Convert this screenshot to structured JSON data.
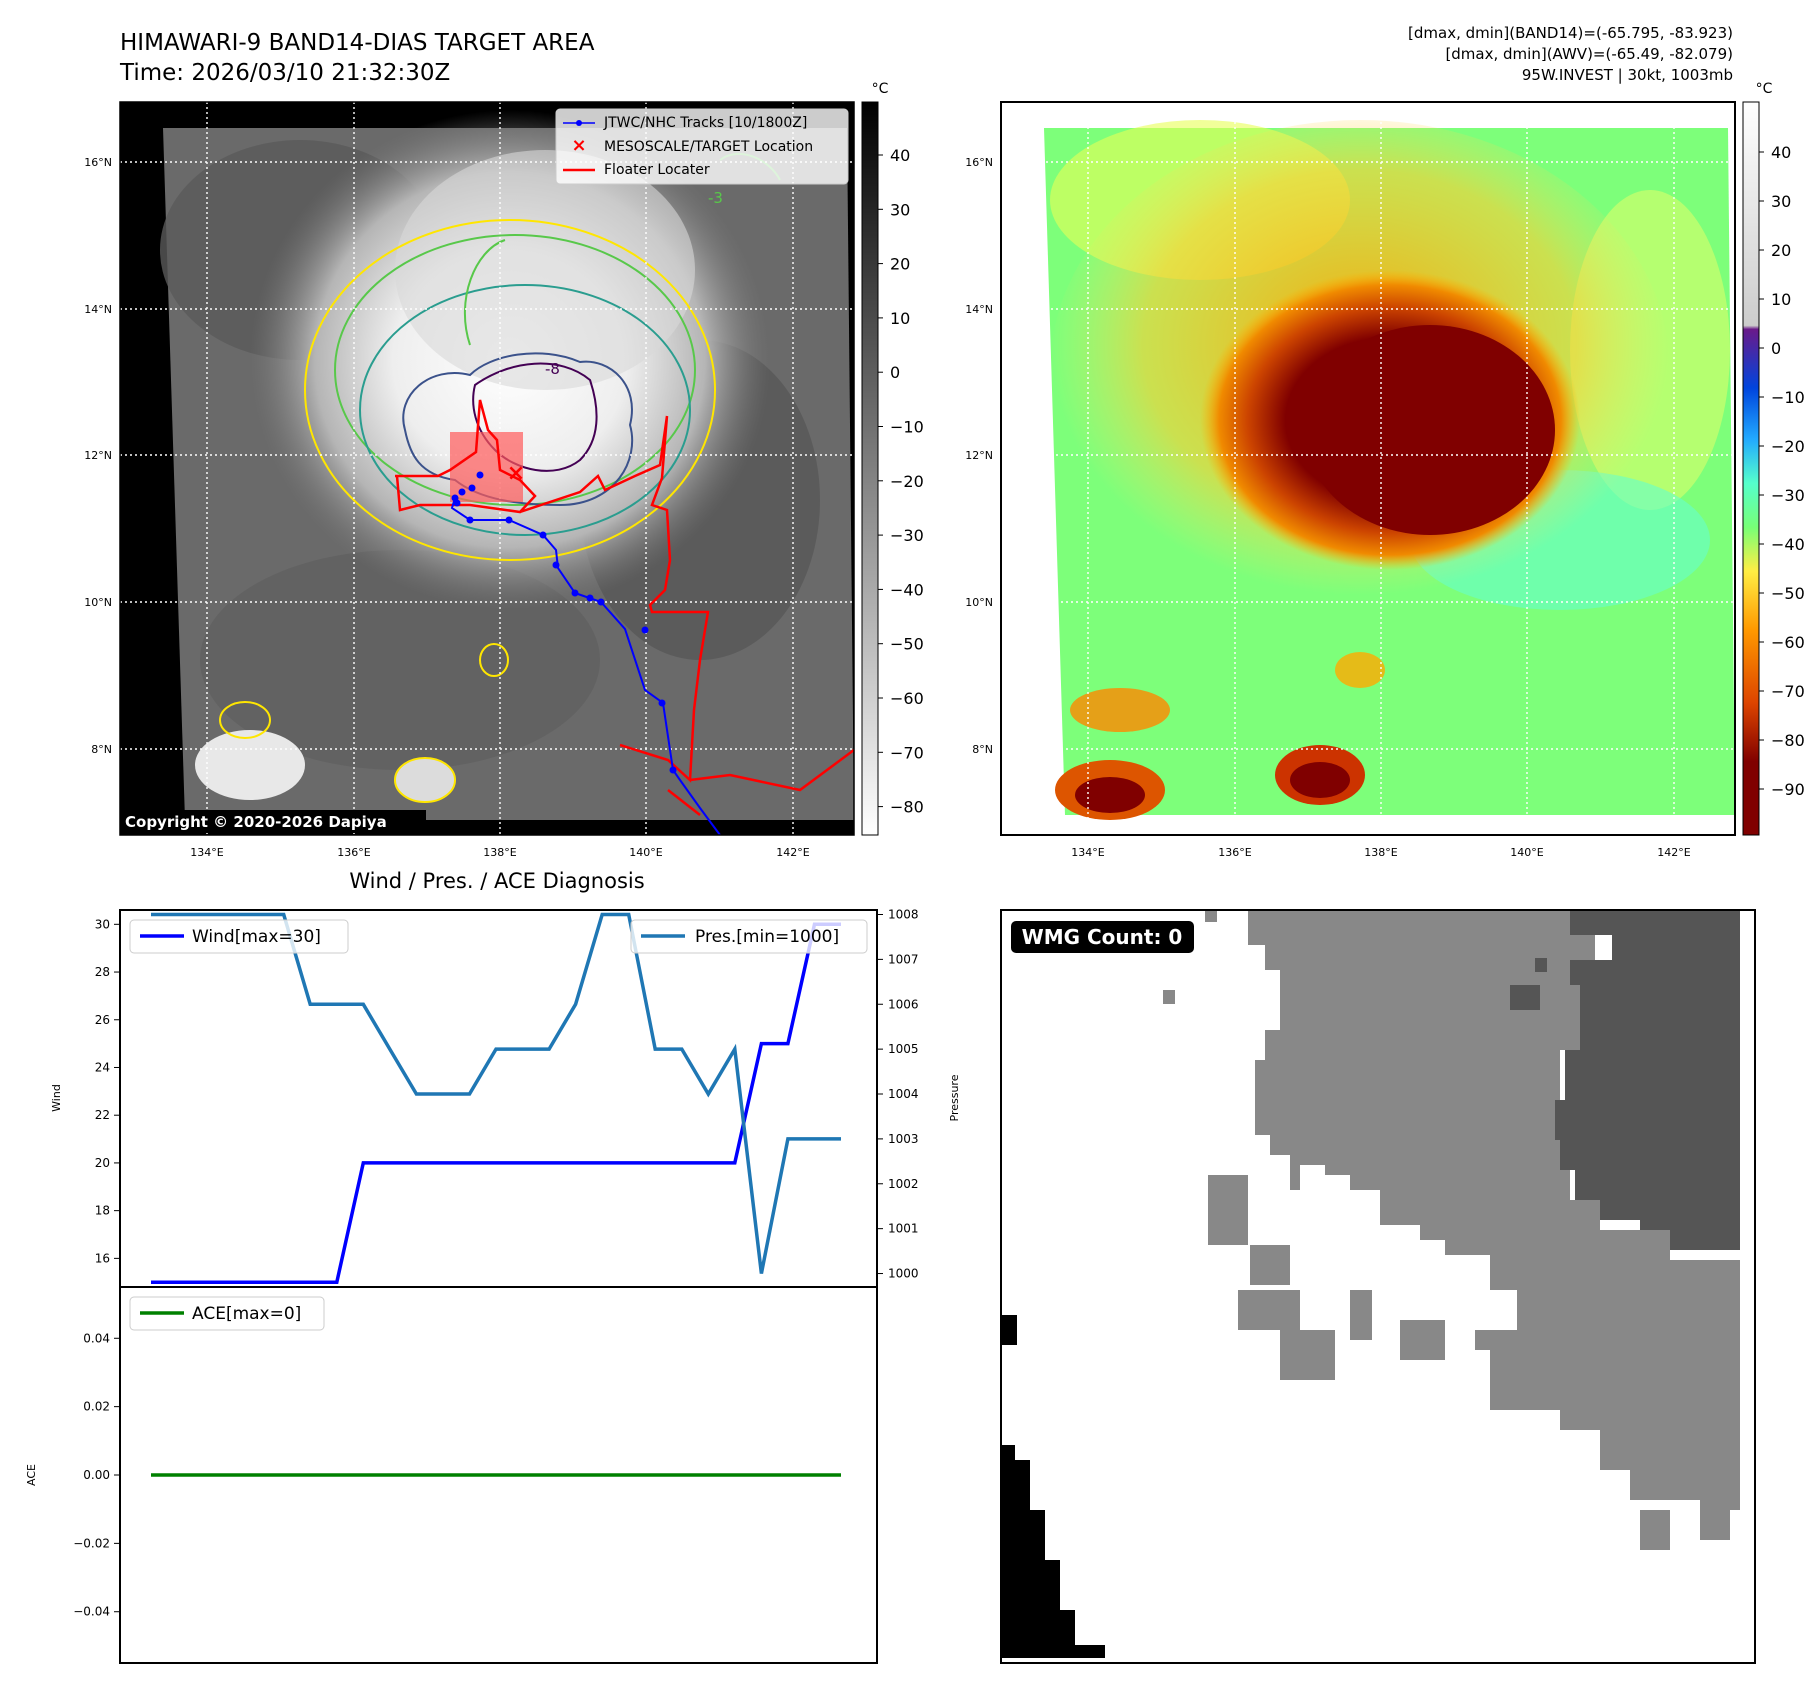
{
  "title": {
    "line1": "HIMAWARI-9 BAND14-DIAS TARGET AREA",
    "line2": "Time: 2026/03/10 21:32:30Z",
    "info1": "[dmax, dmin](BAND14)=(-65.795, -83.923)",
    "info2": "[dmax, dmin](AWV)=(-65.49, -82.079)",
    "info3": "95W.INVEST | 30kt, 1003mb"
  },
  "copyright": "Copyright © 2020-2026 Dapiya",
  "map_axes": {
    "lon_labels": [
      "134°E",
      "136°E",
      "138°E",
      "140°E",
      "142°E"
    ],
    "lat_labels": [
      "16°N",
      "14°N",
      "12°N",
      "10°N",
      "8°N"
    ]
  },
  "colorbar_gray": {
    "unit": "°C",
    "ticks": [
      "40",
      "30",
      "20",
      "10",
      "0",
      "−10",
      "−20",
      "−30",
      "−40",
      "−50",
      "−60",
      "−70",
      "−80"
    ]
  },
  "colorbar_color": {
    "unit": "°C",
    "ticks": [
      "40",
      "30",
      "20",
      "10",
      "0",
      "−10",
      "−20",
      "−30",
      "−40",
      "−50",
      "−60",
      "−70",
      "−80",
      "−90"
    ]
  },
  "legend": {
    "tracks": "JTWC/NHC Tracks [10/1800Z]",
    "target": "MESOSCALE/TARGET Location",
    "floater": "Floater Locater"
  },
  "contour_labels": [
    "-8",
    "-3"
  ],
  "colors": {
    "wind": "#0000ff",
    "pressure": "#1f77b4",
    "ace": "#008000",
    "track": "#0000ff",
    "floater": "#ff0000",
    "wmg_light": "#888888",
    "wmg_dark": "#555555"
  },
  "chart_data": [
    {
      "type": "line",
      "title": "Wind / Pres. / ACE Diagnosis",
      "xlabel": "",
      "ylabel": "Wind",
      "ylabel_right": "Pressure",
      "ylim": [
        14.8,
        30.6
      ],
      "ylim_right": [
        999.7,
        1008.1
      ],
      "yticks": [
        16,
        18,
        20,
        22,
        24,
        26,
        28,
        30
      ],
      "yticks_right": [
        1000,
        1001,
        1002,
        1003,
        1004,
        1005,
        1006,
        1007,
        1008
      ],
      "series": [
        {
          "name": "Wind[max=30]",
          "axis": "left",
          "values": [
            15,
            15,
            15,
            15,
            15,
            15,
            15,
            15,
            20,
            20,
            20,
            20,
            20,
            20,
            20,
            20,
            20,
            20,
            20,
            20,
            20,
            20,
            20,
            25,
            25,
            30,
            30
          ]
        },
        {
          "name": "Pres.[min=1000]",
          "axis": "right",
          "values": [
            1008,
            1008,
            1008,
            1008,
            1008,
            1008,
            1006,
            1006,
            1006,
            1005,
            1004,
            1004,
            1004,
            1005,
            1005,
            1005,
            1006,
            1008,
            1008,
            1005,
            1005,
            1004,
            1005,
            1000,
            1003,
            1003,
            1003
          ]
        }
      ]
    },
    {
      "type": "line",
      "title": "",
      "ylabel": "ACE",
      "ylim": [
        -0.055,
        0.055
      ],
      "yticks": [
        0.04,
        0.02,
        0.0,
        -0.02,
        -0.04
      ],
      "ytick_labels": [
        "0.04",
        "0.02",
        "0.00",
        "−0.02",
        "−0.04"
      ],
      "series": [
        {
          "name": "ACE[max=0]",
          "values": [
            0,
            0,
            0,
            0,
            0,
            0,
            0,
            0,
            0,
            0,
            0,
            0,
            0,
            0,
            0,
            0,
            0,
            0,
            0,
            0,
            0,
            0,
            0,
            0,
            0,
            0,
            0
          ]
        }
      ]
    }
  ],
  "wmg": {
    "label": "WMG Count: 0"
  }
}
